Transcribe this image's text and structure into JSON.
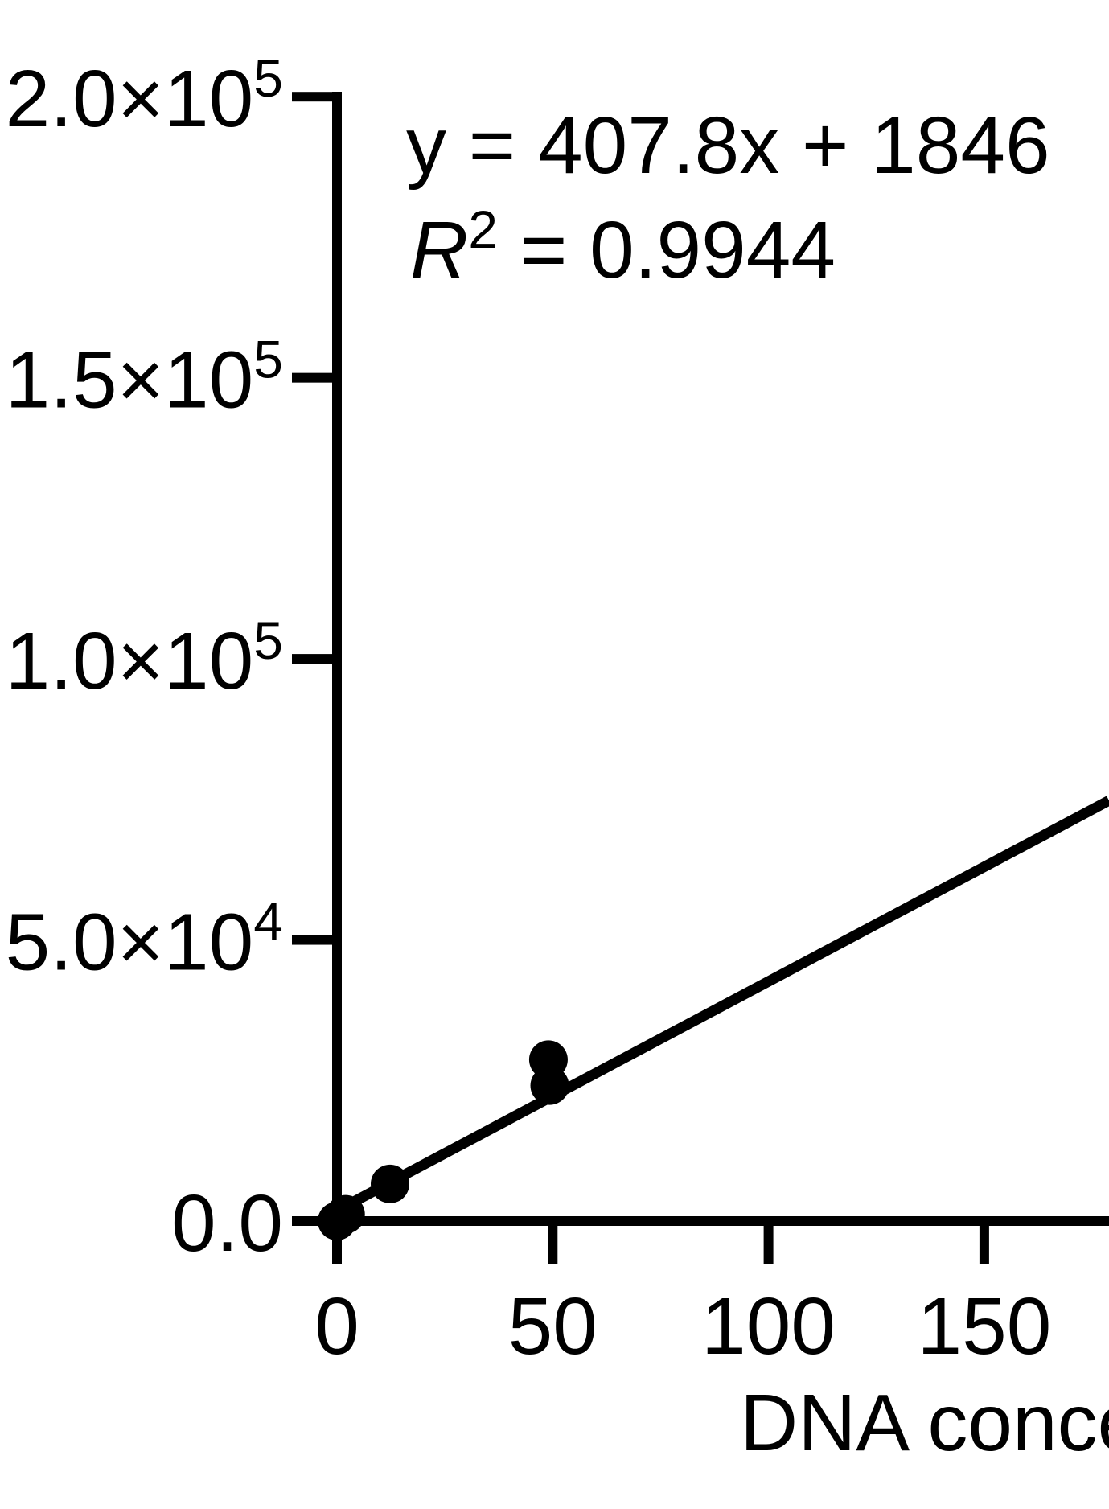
{
  "chart_data": {
    "type": "scatter",
    "title": "",
    "xlabel": "DNA conce",
    "xlabel_clipped_at_right_edge": true,
    "ylabel": "",
    "xlim": [
      0,
      179
    ],
    "ylim": [
      0,
      200000
    ],
    "grid": false,
    "legend": null,
    "marker_color": "#000000",
    "line_color": "#000000",
    "background_color": "#ffffff",
    "x_ticks": [
      {
        "value": 0,
        "label": "0"
      },
      {
        "value": 50,
        "label": "50"
      },
      {
        "value": 100,
        "label": "100"
      },
      {
        "value": 150,
        "label": "150"
      }
    ],
    "y_ticks": [
      {
        "value": 0,
        "label": "0.0"
      },
      {
        "value": 50000,
        "base": "5.0×10",
        "exp": "4"
      },
      {
        "value": 100000,
        "base": "1.0×10",
        "exp": "5"
      },
      {
        "value": 150000,
        "base": "1.5×10",
        "exp": "5"
      },
      {
        "value": 200000,
        "base": "2.0×10",
        "exp": "5"
      }
    ],
    "points": [
      [
        0,
        0
      ],
      [
        2,
        1200
      ],
      [
        12.3,
        6600
      ],
      [
        49,
        28700
      ],
      [
        49.3,
        24100
      ]
    ],
    "fit_line": {
      "slope": 407.8,
      "intercept": 1846,
      "r_squared": 0.9944,
      "x_start": 0
    },
    "equation_text": "y = 407.8x + 1846",
    "r2_text": {
      "var": "R",
      "sup": "2",
      "rest": "= 0.9944"
    }
  },
  "colors": {
    "foreground": "#000000",
    "background": "#ffffff"
  }
}
